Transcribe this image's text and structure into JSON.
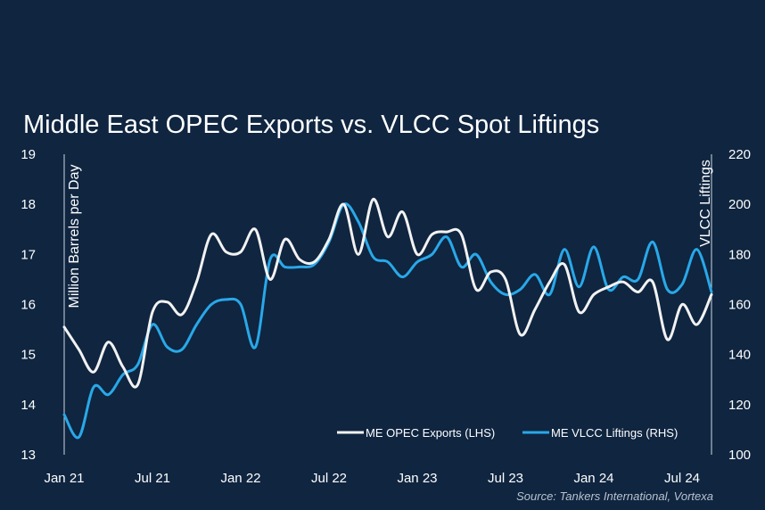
{
  "chart_data": {
    "type": "line",
    "title": "Middle East OPEC Exports vs. VLCC Spot Liftings",
    "source": "Source: Tankers International, Vortexa",
    "x_tick_labels": [
      "Jan 21",
      "Jul 21",
      "Jan 22",
      "Jul 22",
      "Jan 23",
      "Jul 23",
      "Jan 24",
      "Jul 24"
    ],
    "x_start": "2021-01",
    "x_end": "2024-09",
    "y_left": {
      "label": "Million Barrels per Day",
      "ylim": [
        13,
        19
      ],
      "ticks": [
        13,
        14,
        15,
        16,
        17,
        18,
        19
      ]
    },
    "y_right": {
      "label": "VLCC Liftings",
      "ylim": [
        100,
        220
      ],
      "ticks": [
        100,
        120,
        140,
        160,
        180,
        200,
        220
      ]
    },
    "legend_position": "bottom-right",
    "grid": false,
    "series": [
      {
        "name": "ME OPEC Exports (LHS)",
        "axis": "left",
        "color": "#f2f2f2",
        "points": [
          [
            "2021-01",
            15.55
          ],
          [
            "2021-02",
            15.1
          ],
          [
            "2021-03",
            14.65
          ],
          [
            "2021-04",
            15.25
          ],
          [
            "2021-05",
            14.75
          ],
          [
            "2021-06",
            14.4
          ],
          [
            "2021-07",
            15.85
          ],
          [
            "2021-08",
            16.05
          ],
          [
            "2021-09",
            15.8
          ],
          [
            "2021-10",
            16.45
          ],
          [
            "2021-11",
            17.4
          ],
          [
            "2021-12",
            17.05
          ],
          [
            "2022-01",
            17.05
          ],
          [
            "2022-02",
            17.5
          ],
          [
            "2022-03",
            16.5
          ],
          [
            "2022-04",
            17.3
          ],
          [
            "2022-05",
            16.9
          ],
          [
            "2022-06",
            16.85
          ],
          [
            "2022-07",
            17.3
          ],
          [
            "2022-08",
            18.0
          ],
          [
            "2022-09",
            17.0
          ],
          [
            "2022-10",
            18.1
          ],
          [
            "2022-11",
            17.35
          ],
          [
            "2022-12",
            17.85
          ],
          [
            "2023-01",
            17.0
          ],
          [
            "2023-02",
            17.4
          ],
          [
            "2023-03",
            17.45
          ],
          [
            "2023-04",
            17.4
          ],
          [
            "2023-05",
            16.3
          ],
          [
            "2023-06",
            16.65
          ],
          [
            "2023-07",
            16.5
          ],
          [
            "2023-08",
            15.4
          ],
          [
            "2023-09",
            15.9
          ],
          [
            "2023-10",
            16.45
          ],
          [
            "2023-11",
            16.8
          ],
          [
            "2023-12",
            15.85
          ],
          [
            "2024-01",
            16.2
          ],
          [
            "2024-02",
            16.35
          ],
          [
            "2024-03",
            16.45
          ],
          [
            "2024-04",
            16.25
          ],
          [
            "2024-05",
            16.45
          ],
          [
            "2024-06",
            15.3
          ],
          [
            "2024-07",
            16.0
          ],
          [
            "2024-08",
            15.6
          ],
          [
            "2024-09",
            16.2
          ]
        ]
      },
      {
        "name": "ME VLCC Liftings (RHS)",
        "axis": "right",
        "color": "#29a8e8",
        "points": [
          [
            "2021-01",
            116
          ],
          [
            "2021-02",
            107
          ],
          [
            "2021-03",
            127
          ],
          [
            "2021-04",
            124
          ],
          [
            "2021-05",
            132
          ],
          [
            "2021-06",
            136
          ],
          [
            "2021-07",
            152
          ],
          [
            "2021-08",
            143
          ],
          [
            "2021-09",
            142
          ],
          [
            "2021-10",
            152
          ],
          [
            "2021-11",
            160
          ],
          [
            "2021-12",
            162
          ],
          [
            "2022-01",
            160
          ],
          [
            "2022-02",
            143
          ],
          [
            "2022-03",
            178
          ],
          [
            "2022-04",
            175
          ],
          [
            "2022-05",
            175
          ],
          [
            "2022-06",
            176
          ],
          [
            "2022-07",
            185
          ],
          [
            "2022-08",
            200
          ],
          [
            "2022-09",
            193
          ],
          [
            "2022-10",
            179
          ],
          [
            "2022-11",
            177
          ],
          [
            "2022-12",
            171
          ],
          [
            "2023-01",
            177
          ],
          [
            "2023-02",
            180
          ],
          [
            "2023-03",
            187
          ],
          [
            "2023-04",
            175
          ],
          [
            "2023-05",
            180
          ],
          [
            "2023-06",
            169
          ],
          [
            "2023-07",
            164
          ],
          [
            "2023-08",
            166
          ],
          [
            "2023-09",
            172
          ],
          [
            "2023-10",
            164
          ],
          [
            "2023-11",
            182
          ],
          [
            "2023-12",
            167
          ],
          [
            "2024-01",
            183
          ],
          [
            "2024-02",
            166
          ],
          [
            "2024-03",
            171
          ],
          [
            "2024-04",
            170
          ],
          [
            "2024-05",
            185
          ],
          [
            "2024-06",
            166
          ],
          [
            "2024-07",
            168
          ],
          [
            "2024-08",
            182
          ],
          [
            "2024-09",
            165
          ]
        ]
      }
    ]
  }
}
